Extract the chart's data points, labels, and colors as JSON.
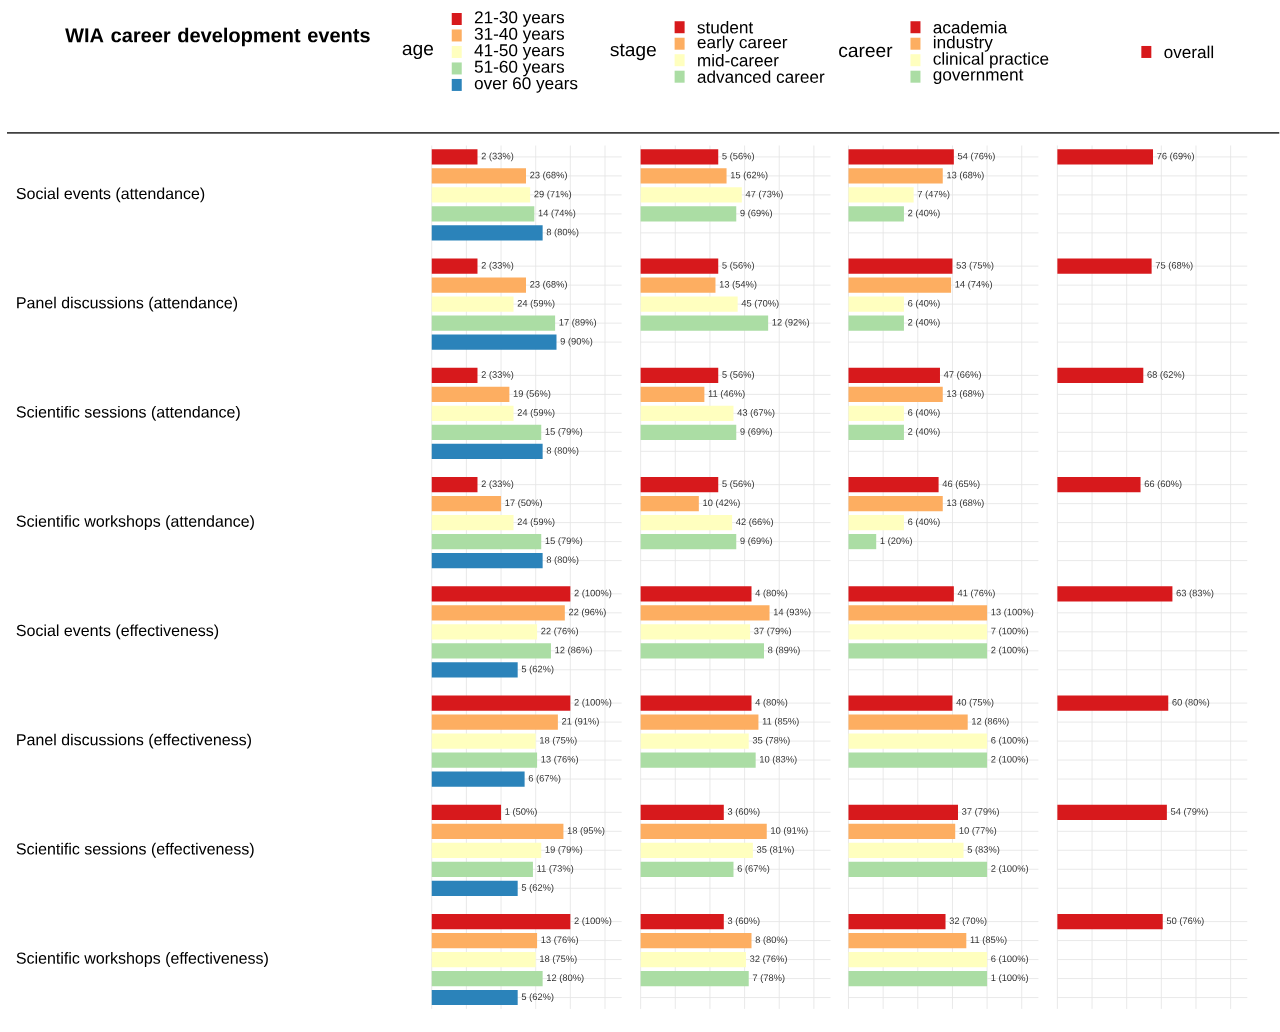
{
  "chart_data": [
    {
      "type": "bar",
      "orientation": "horizontal",
      "title": "WIA career development events",
      "legend_title": "age",
      "legend": "top",
      "grid": true,
      "tick_labels": "y",
      "categories": [
        "Social events (attendance)",
        "Panel discussions (attendance)",
        "Scientific sessions (attendance)",
        "Scientific workshops (attendance)",
        "Social events (effectiveness)",
        "Panel discussions (effectiveness)",
        "Scientific sessions (effectiveness)",
        "Scientific workshops (effectiveness)"
      ],
      "xlim": [
        0,
        137
      ],
      "xticks": [
        {
          "value": 0,
          "label": null
        },
        {
          "value": 25,
          "label": null
        },
        {
          "value": 50,
          "label": null
        },
        {
          "value": 75,
          "label": null
        },
        {
          "value": 100,
          "label": null
        },
        {
          "value": 125,
          "label": null
        }
      ],
      "series": [
        {
          "name": "21-30 years",
          "color": "#d7191c",
          "values": [
            33,
            33,
            33,
            33,
            100,
            100,
            50,
            100
          ],
          "value_labels": [
            "2 (33%)",
            "2 (33%)",
            "2 (33%)",
            "2 (33%)",
            "2 (100%)",
            "2 (100%)",
            "1 (50%)",
            "2 (100%)"
          ]
        },
        {
          "name": "31-40 years",
          "color": "#fdae61",
          "values": [
            68,
            68,
            56,
            50,
            96,
            91,
            95,
            76
          ],
          "value_labels": [
            "23 (68%)",
            "23 (68%)",
            "19 (56%)",
            "17 (50%)",
            "22 (96%)",
            "21 (91%)",
            "18 (95%)",
            "13 (76%)"
          ]
        },
        {
          "name": "41-50 years",
          "color": "#ffffbf",
          "values": [
            71,
            59,
            59,
            59,
            76,
            75,
            79,
            75
          ],
          "value_labels": [
            "29 (71%)",
            "24 (59%)",
            "24 (59%)",
            "24 (59%)",
            "22 (76%)",
            "18 (75%)",
            "19 (79%)",
            "18 (75%)"
          ]
        },
        {
          "name": "51-60 years",
          "color": "#abdda4",
          "values": [
            74,
            89,
            79,
            79,
            86,
            76,
            73,
            80
          ],
          "value_labels": [
            "14 (74%)",
            "17 (89%)",
            "15 (79%)",
            "15 (79%)",
            "12 (86%)",
            "13 (76%)",
            "11 (73%)",
            "12 (80%)"
          ]
        },
        {
          "name": "over 60 years",
          "color": "#2b83ba",
          "values": [
            80,
            90,
            80,
            80,
            62,
            67,
            62,
            62
          ],
          "value_labels": [
            "8 (80%)",
            "9 (90%)",
            "8 (80%)",
            "8 (80%)",
            "5 (62%)",
            "6 (67%)",
            "5 (62%)",
            "5 (62%)"
          ]
        }
      ]
    },
    {
      "type": "bar",
      "orientation": "horizontal",
      "legend_title": "stage",
      "legend": "top",
      "grid": true,
      "tick_labels": false,
      "categories": [
        null,
        null,
        null,
        null,
        null,
        null,
        null,
        null
      ],
      "xlim": [
        0,
        137
      ],
      "xticks": [
        {
          "value": 0,
          "label": null
        },
        {
          "value": 25,
          "label": null
        },
        {
          "value": 50,
          "label": null
        },
        {
          "value": 75,
          "label": null
        },
        {
          "value": 100,
          "label": null
        },
        {
          "value": 125,
          "label": null
        }
      ],
      "series": [
        {
          "name": "student",
          "color": "#d7191c",
          "values": [
            56,
            56,
            56,
            56,
            80,
            80,
            60,
            60
          ],
          "value_labels": [
            "5 (56%)",
            "5 (56%)",
            "5 (56%)",
            "5 (56%)",
            "4 (80%)",
            "4 (80%)",
            "3 (60%)",
            "3 (60%)"
          ]
        },
        {
          "name": "early career",
          "color": "#fdae61",
          "values": [
            62,
            54,
            46,
            42,
            93,
            85,
            91,
            80
          ],
          "value_labels": [
            "15 (62%)",
            "13 (54%)",
            "11 (46%)",
            "10 (42%)",
            "14 (93%)",
            "11 (85%)",
            "10 (91%)",
            "8 (80%)"
          ]
        },
        {
          "name": "mid-career",
          "color": "#ffffbf",
          "values": [
            73,
            70,
            67,
            66,
            79,
            78,
            81,
            76
          ],
          "value_labels": [
            "47 (73%)",
            "45 (70%)",
            "43 (67%)",
            "42 (66%)",
            "37 (79%)",
            "35 (78%)",
            "35 (81%)",
            "32 (76%)"
          ]
        },
        {
          "name": "advanced career",
          "color": "#abdda4",
          "values": [
            69,
            92,
            69,
            69,
            89,
            83,
            67,
            78
          ],
          "value_labels": [
            "9 (69%)",
            "12 (92%)",
            "9 (69%)",
            "9 (69%)",
            "8 (89%)",
            "10 (83%)",
            "6 (67%)",
            "7 (78%)"
          ]
        }
      ]
    },
    {
      "type": "bar",
      "orientation": "horizontal",
      "legend_title": "career",
      "legend": "top",
      "grid": true,
      "tick_labels": false,
      "categories": [
        null,
        null,
        null,
        null,
        null,
        null,
        null,
        null
      ],
      "xlim": [
        0,
        137
      ],
      "xticks": [
        {
          "value": 0,
          "label": null
        },
        {
          "value": 25,
          "label": null
        },
        {
          "value": 50,
          "label": null
        },
        {
          "value": 75,
          "label": null
        },
        {
          "value": 100,
          "label": null
        },
        {
          "value": 125,
          "label": null
        }
      ],
      "series": [
        {
          "name": "academia",
          "color": "#d7191c",
          "values": [
            76,
            75,
            66,
            65,
            76,
            75,
            79,
            70
          ],
          "value_labels": [
            "54 (76%)",
            "53 (75%)",
            "47 (66%)",
            "46 (65%)",
            "41 (76%)",
            "40 (75%)",
            "37 (79%)",
            "32 (70%)"
          ]
        },
        {
          "name": "industry",
          "color": "#fdae61",
          "values": [
            68,
            74,
            68,
            68,
            100,
            86,
            77,
            85
          ],
          "value_labels": [
            "13 (68%)",
            "14 (74%)",
            "13 (68%)",
            "13 (68%)",
            "13 (100%)",
            "12 (86%)",
            "10 (77%)",
            "11 (85%)"
          ]
        },
        {
          "name": "clinical practice",
          "color": "#ffffbf",
          "values": [
            47,
            40,
            40,
            40,
            100,
            100,
            83,
            100
          ],
          "value_labels": [
            "7 (47%)",
            "6 (40%)",
            "6 (40%)",
            "6 (40%)",
            "7 (100%)",
            "6 (100%)",
            "5 (83%)",
            "6 (100%)"
          ]
        },
        {
          "name": "government",
          "color": "#abdda4",
          "values": [
            40,
            40,
            40,
            20,
            100,
            100,
            100,
            100
          ],
          "value_labels": [
            "2 (40%)",
            "2 (40%)",
            "2 (40%)",
            "1 (20%)",
            "2 (100%)",
            "2 (100%)",
            "2 (100%)",
            "1 (100%)"
          ]
        }
      ]
    },
    {
      "type": "bar",
      "orientation": "horizontal",
      "legend": "top",
      "grid": true,
      "tick_labels": false,
      "categories": [
        null,
        null,
        null,
        null,
        null,
        null,
        null,
        null
      ],
      "xlim": [
        0,
        137
      ],
      "xticks": [
        {
          "value": 0,
          "label": null
        },
        {
          "value": 25,
          "label": null
        },
        {
          "value": 50,
          "label": null
        },
        {
          "value": 75,
          "label": null
        },
        {
          "value": 100,
          "label": null
        },
        {
          "value": 125,
          "label": null
        }
      ],
      "series": [
        {
          "name": "overall",
          "color": "#d7191c",
          "values": [
            69,
            68,
            62,
            60,
            83,
            80,
            79,
            76
          ],
          "value_labels": [
            "76 (69%)",
            "75 (68%)",
            "68 (62%)",
            "66 (60%)",
            "63 (83%)",
            "60 (80%)",
            "54 (79%)",
            "50 (76%)"
          ]
        }
      ]
    }
  ]
}
